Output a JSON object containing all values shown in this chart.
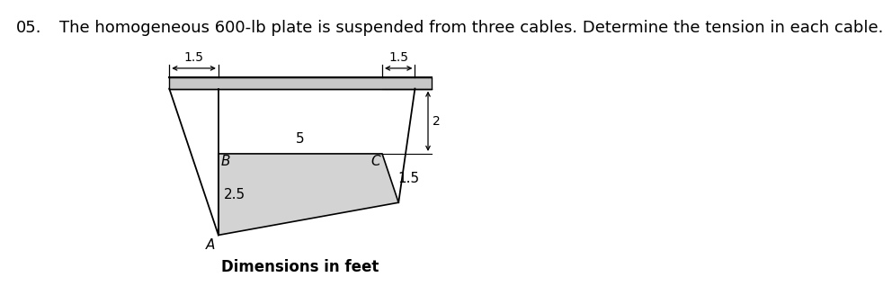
{
  "title_number": "05.",
  "title_text": "The homogeneous 600-lb plate is suspended from three cables. Determine the tension in each cable.",
  "title_fontsize": 13,
  "caption": "Dimensions in feet",
  "caption_fontsize": 12,
  "bg_color": "#ffffff",
  "plate_color": "#d3d3d3",
  "wall_color": "#c8c8c8",
  "line_color": "#000000",
  "label_B": "B",
  "label_C": "C",
  "label_A": "A",
  "dim_15_left": "1.5",
  "dim_15_right": "1.5",
  "dim_5": "5",
  "dim_2": "2",
  "dim_25": "2.5",
  "dim_15_side": "1.5"
}
